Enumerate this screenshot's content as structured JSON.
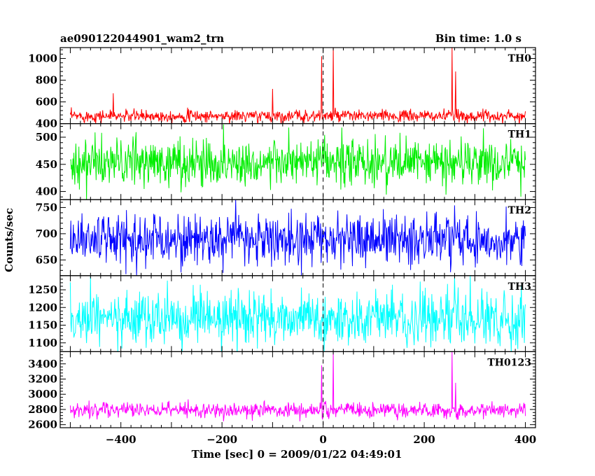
{
  "header": {
    "left": "ae090122044901_wam2_trn",
    "right": "Bin time: 1.0 s"
  },
  "axes": {
    "xlabel": "Time [sec] 0 = 2009/01/22 04:49:01",
    "ylabel": "Counts/sec",
    "xlim": [
      -520,
      420
    ],
    "xticks": [
      -400,
      -200,
      0,
      200,
      400
    ],
    "xtick_labels": [
      "−400",
      "−200",
      "0",
      "200",
      "400"
    ],
    "marker_x": 0
  },
  "chart_data": [
    {
      "type": "line",
      "name": "TH0",
      "color": "#ff0000",
      "ylim": [
        400,
        1100
      ],
      "yticks": [
        400,
        600,
        800,
        1000
      ],
      "x_range": [
        -500,
        400
      ],
      "base": 470,
      "noise": 28,
      "spikes": [
        {
          "x": -415,
          "y": 680
        },
        {
          "x": -100,
          "y": 720
        },
        {
          "x": -3,
          "y": 1020
        },
        {
          "x": 20,
          "y": 1100
        },
        {
          "x": 255,
          "y": 1100
        },
        {
          "x": 262,
          "y": 880
        }
      ]
    },
    {
      "type": "line",
      "name": "TH1",
      "color": "#00ee00",
      "ylim": [
        385,
        525
      ],
      "yticks": [
        400,
        450,
        500
      ],
      "x_range": [
        -500,
        400
      ],
      "base": 453,
      "noise": 22,
      "spikes": []
    },
    {
      "type": "line",
      "name": "TH2",
      "color": "#0000ff",
      "ylim": [
        620,
        765
      ],
      "yticks": [
        650,
        700,
        750
      ],
      "x_range": [
        -500,
        400
      ],
      "base": 690,
      "noise": 24,
      "spikes": []
    },
    {
      "type": "line",
      "name": "TH3",
      "color": "#00ffff",
      "ylim": [
        1075,
        1290
      ],
      "yticks": [
        1100,
        1150,
        1200,
        1250
      ],
      "x_range": [
        -500,
        400
      ],
      "base": 1168,
      "noise": 36,
      "spikes": []
    },
    {
      "type": "line",
      "name": "TH0123",
      "color": "#ff00ff",
      "ylim": [
        2560,
        3560
      ],
      "yticks": [
        2600,
        2800,
        3000,
        3200,
        3400
      ],
      "x_range": [
        -500,
        400
      ],
      "base": 2790,
      "noise": 50,
      "spikes": [
        {
          "x": -3,
          "y": 3380
        },
        {
          "x": 20,
          "y": 3560
        },
        {
          "x": 255,
          "y": 3560
        },
        {
          "x": 262,
          "y": 3150
        }
      ]
    }
  ]
}
